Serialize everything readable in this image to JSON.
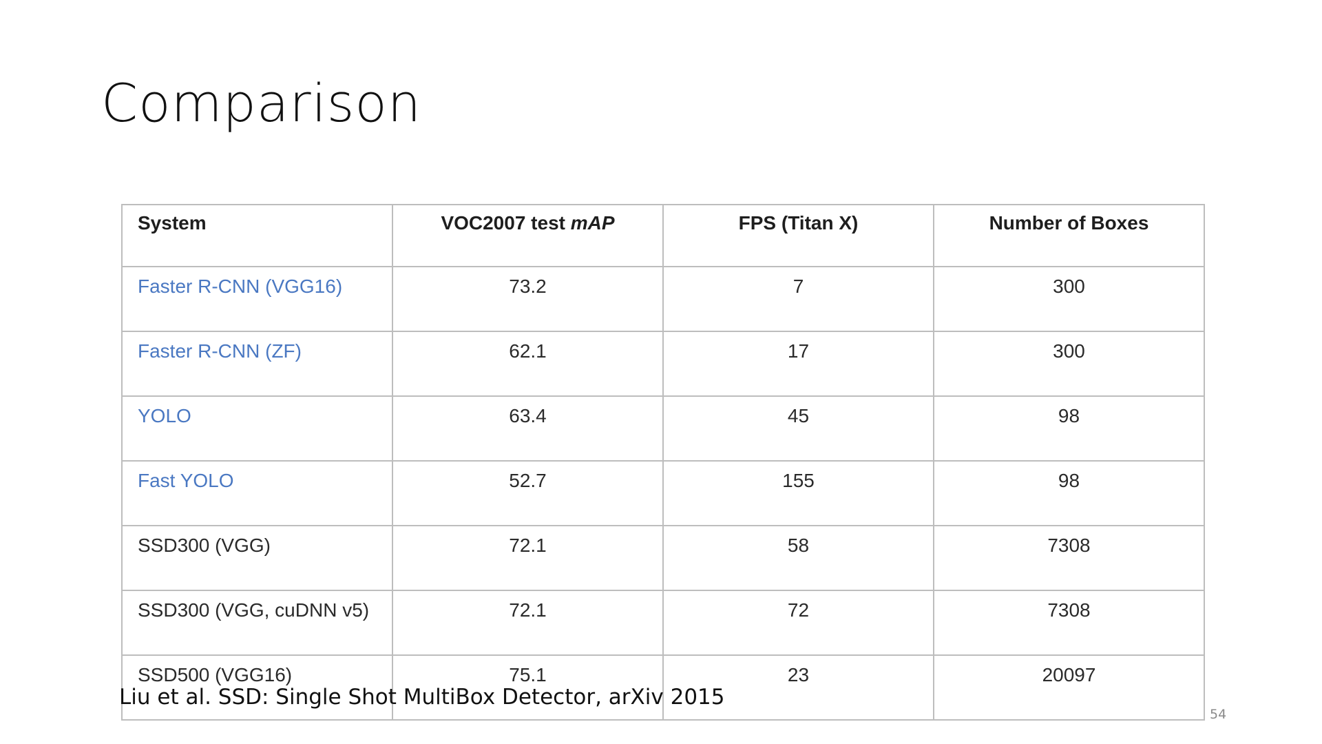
{
  "slide": {
    "title": "Comparison",
    "citation": "Liu et al. SSD: Single Shot MultiBox Detector, arXiv 2015",
    "page_number": "54"
  },
  "table": {
    "headers": {
      "system": "System",
      "map_prefix": "VOC2007 test ",
      "map_italic": "mAP",
      "fps": "FPS (Titan X)",
      "boxes": "Number of Boxes"
    },
    "link_color": "#4a78c2",
    "rows": [
      {
        "system": "Faster R-CNN (VGG16)",
        "map": "73.2",
        "fps": "7",
        "boxes": "300",
        "linked": true
      },
      {
        "system": "Faster R-CNN (ZF)",
        "map": "62.1",
        "fps": "17",
        "boxes": "300",
        "linked": true
      },
      {
        "system": "YOLO",
        "map": "63.4",
        "fps": "45",
        "boxes": "98",
        "linked": true
      },
      {
        "system": "Fast YOLO",
        "map": "52.7",
        "fps": "155",
        "boxes": "98",
        "linked": true
      },
      {
        "system": "SSD300 (VGG)",
        "map": "72.1",
        "fps": "58",
        "boxes": "7308",
        "linked": false
      },
      {
        "system": "SSD300 (VGG, cuDNN v5)",
        "map": "72.1",
        "fps": "72",
        "boxes": "7308",
        "linked": false
      },
      {
        "system": "SSD500 (VGG16)",
        "map": "75.1",
        "fps": "23",
        "boxes": "20097",
        "linked": false
      }
    ]
  }
}
